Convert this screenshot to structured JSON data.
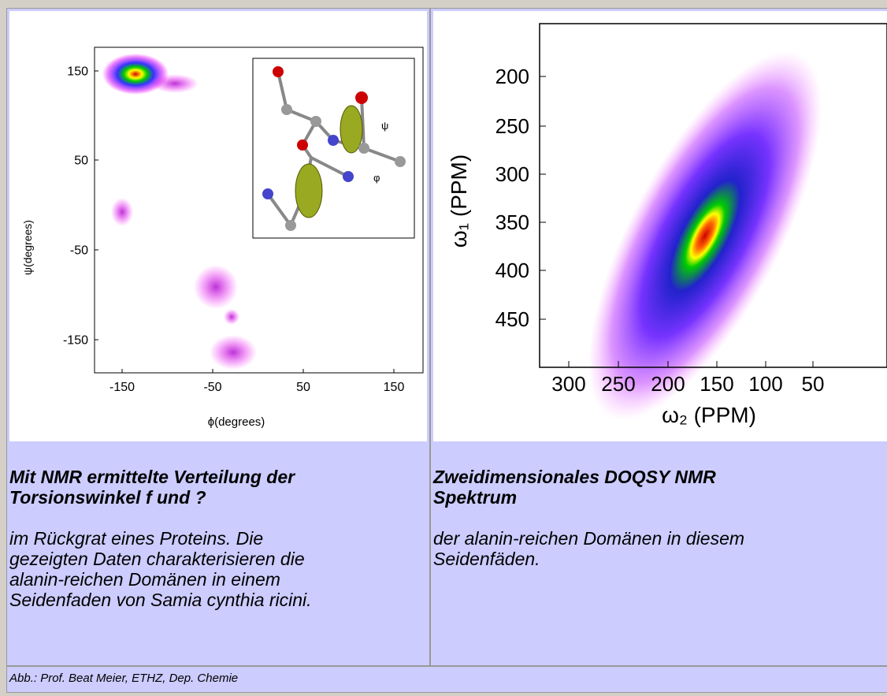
{
  "figures": [
    {
      "y_label": "ψ(degrees)",
      "x_label": "ϕ(degrees)",
      "yticks": [
        "150",
        "50",
        "-50",
        "-150"
      ],
      "xticks": [
        "-150",
        "-50",
        "50",
        "150"
      ],
      "inset_labels": [
        "ψ",
        "φ"
      ],
      "heading": [
        "Mit NMR ermittelte Verteilung der",
        "Torsionswinkel f   und ?"
      ],
      "body": [
        "im Rückgrat eines Proteins. Die",
        "gezeigten Daten charakterisieren die",
        "alanin-reichen Domänen in einem",
        "Seidenfaden von Samia cynthia ricini."
      ]
    },
    {
      "y_label": "ω₁ (PPM)",
      "x_label": "ω₂ (PPM)",
      "yticks": [
        "200",
        "250",
        "300",
        "350",
        "400",
        "450"
      ],
      "xticks": [
        "300",
        "250",
        "200",
        "150",
        "100",
        "50"
      ],
      "heading": [
        "Zweidimensionales DOQSY NMR",
        "Spektrum"
      ],
      "body": [
        "der alanin-reichen Domänen in diesem",
        "Seidenfäden."
      ]
    }
  ],
  "footer": "Abb.: Prof. Beat Meier, ETHZ, Dep. Chemie"
}
